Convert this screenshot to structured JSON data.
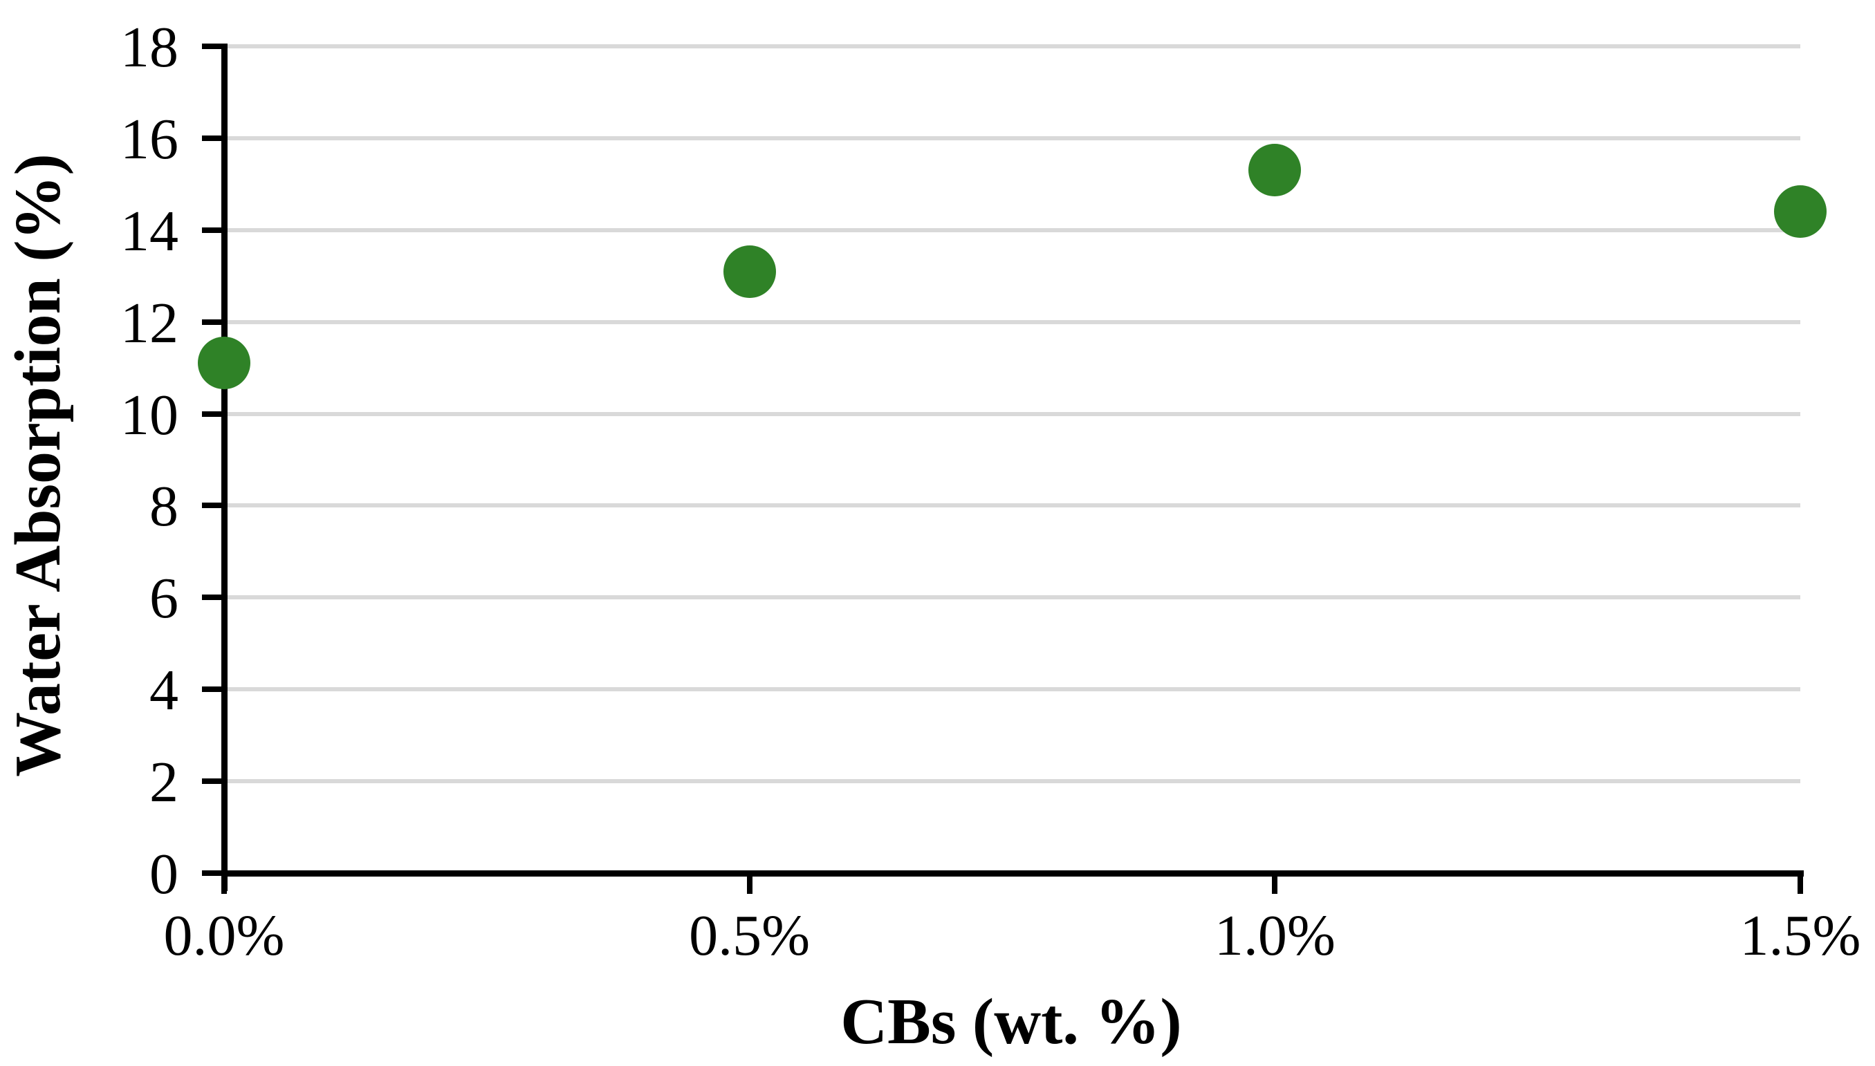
{
  "chart_data": {
    "type": "scatter",
    "title": "",
    "xlabel": "CBs (wt. %)",
    "ylabel": "Water Absorption (%)",
    "categories": [
      "0.0%",
      "0.5%",
      "1.0%",
      "1.5%"
    ],
    "x": [
      0.0,
      0.5,
      1.0,
      1.5
    ],
    "values": [
      11.1,
      13.1,
      15.3,
      14.4
    ],
    "series_name": "Water Absorption",
    "ylim": [
      0,
      18
    ],
    "ytick_step": 2,
    "yticks": [
      0,
      2,
      4,
      6,
      8,
      10,
      12,
      14,
      16,
      18
    ],
    "grid": "horizontal",
    "legend": "none",
    "marker_color": "#2F8227",
    "gridline_color": "#D9D9D9",
    "axis_color": "#000000"
  }
}
